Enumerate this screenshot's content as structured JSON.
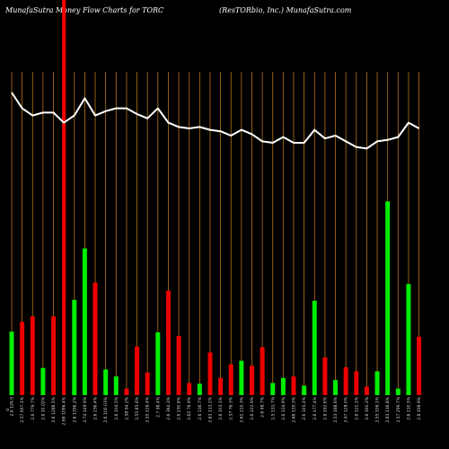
{
  "header": {
    "left_title": "MunafaSutra  Money Flow  Charts for TORC",
    "right_title": "(ResTORbio,  Inc.) MunafaSutra.com"
  },
  "colors": {
    "background": "#000000",
    "grid": "#b8751a",
    "up_bar": "#00ee00",
    "down_bar": "#ee0000",
    "line": "#ffffff",
    "highlight": "#ff0000"
  },
  "chart_data": {
    "type": "bar",
    "series_line_name": "",
    "bars": [
      {
        "label": "2.6 126.9",
        "value": 0.262,
        "color": "green"
      },
      {
        "label": "2.57 697.1%",
        "value": 0.302,
        "color": "red"
      },
      {
        "label": "2.6 779.7%",
        "value": 0.325,
        "color": "red"
      },
      {
        "label": "2.6 10.02%",
        "value": 0.112,
        "color": "green"
      },
      {
        "label": "2.6 1288.5%",
        "value": 0.325,
        "color": "red"
      },
      {
        "label": "2.66 1096.4%",
        "value": 0.0,
        "color": "red"
      },
      {
        "label": "2.6 1356.2%",
        "value": 0.393,
        "color": "green"
      },
      {
        "label": "2.74 149.9%",
        "value": 0.605,
        "color": "green"
      },
      {
        "label": "2.6 236.4%",
        "value": 0.464,
        "color": "red"
      },
      {
        "label": "2.6 100.03%",
        "value": 0.106,
        "color": "green"
      },
      {
        "label": "2.6 104.5%",
        "value": 0.077,
        "color": "green"
      },
      {
        "label": "2.58 94.2%",
        "value": 0.027,
        "color": "red"
      },
      {
        "label": "2.55 85.6%",
        "value": 0.2,
        "color": "red"
      },
      {
        "label": "2.55 228.4%",
        "value": 0.093,
        "color": "red"
      },
      {
        "label": "2.7 98.4%",
        "value": 0.259,
        "color": "green"
      },
      {
        "label": "2.6 394.3%",
        "value": 0.431,
        "color": "red"
      },
      {
        "label": "2.6 230.8%",
        "value": 0.244,
        "color": "red"
      },
      {
        "label": "2.62 78.9%",
        "value": 0.05,
        "color": "red"
      },
      {
        "label": "2.6 116.7%",
        "value": 0.047,
        "color": "green"
      },
      {
        "label": "2.63 113.2%",
        "value": 0.176,
        "color": "red"
      },
      {
        "label": "2.6 103.1%",
        "value": 0.071,
        "color": "red"
      },
      {
        "label": "2.57 76.3%",
        "value": 0.127,
        "color": "red"
      },
      {
        "label": "2.61 210.3%",
        "value": 0.142,
        "color": "green"
      },
      {
        "label": "2.6 122.9%",
        "value": 0.121,
        "color": "red"
      },
      {
        "label": "2.6 98.7%",
        "value": 0.198,
        "color": "red"
      },
      {
        "label": "2.5 131.7%",
        "value": 0.05,
        "color": "green"
      },
      {
        "label": "2.6 124.9%",
        "value": 0.071,
        "color": "green"
      },
      {
        "label": "2.66 135.3%",
        "value": 0.077,
        "color": "red"
      },
      {
        "label": "2.6 105.4%",
        "value": 0.039,
        "color": "green"
      },
      {
        "label": "2.6 177.4%",
        "value": 0.389,
        "color": "green"
      },
      {
        "label": "2.6 192.6%",
        "value": 0.156,
        "color": "red"
      },
      {
        "label": "2.53 168.6%",
        "value": 0.062,
        "color": "green"
      },
      {
        "label": "2.47 128.0%",
        "value": 0.115,
        "color": "red"
      },
      {
        "label": "2.6 121.1%",
        "value": 0.098,
        "color": "red"
      },
      {
        "label": "2.6 100.2%",
        "value": 0.035,
        "color": "red"
      },
      {
        "label": "2.55 106.1%",
        "value": 0.098,
        "color": "green"
      },
      {
        "label": "2.63 116.8%",
        "value": 0.799,
        "color": "green"
      },
      {
        "label": "2.57 299.7%",
        "value": 0.027,
        "color": "green"
      },
      {
        "label": "2.6 210.5%",
        "value": 0.458,
        "color": "green"
      },
      {
        "label": "2.8 108.9%",
        "value": 0.241,
        "color": "red"
      }
    ],
    "line_values": [
      1.0,
      0.89,
      0.84,
      0.86,
      0.86,
      0.79,
      0.84,
      0.96,
      0.84,
      0.87,
      0.89,
      0.89,
      0.85,
      0.82,
      0.89,
      0.79,
      0.76,
      0.75,
      0.76,
      0.74,
      0.73,
      0.7,
      0.74,
      0.71,
      0.66,
      0.65,
      0.69,
      0.65,
      0.65,
      0.74,
      0.68,
      0.7,
      0.66,
      0.62,
      0.61,
      0.66,
      0.67,
      0.69,
      0.79,
      0.75
    ],
    "highlight_index": 5,
    "bottom_label": "0"
  }
}
